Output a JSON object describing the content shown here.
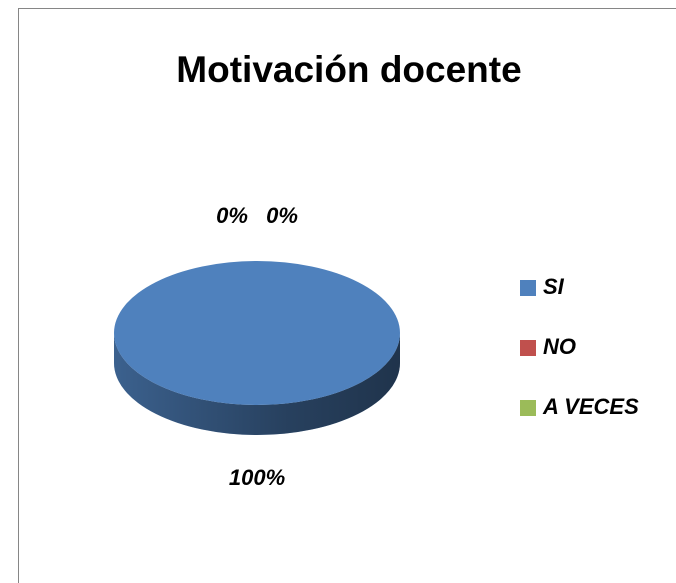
{
  "chart_data": {
    "type": "pie",
    "title": "Motivación docente",
    "categories": [
      "SI",
      "NO",
      "A VECES"
    ],
    "values": [
      100,
      0,
      0
    ],
    "value_labels": [
      "100%",
      "0%",
      "0%"
    ],
    "colors": [
      "#4f81bd",
      "#c0504d",
      "#9bbb59"
    ],
    "legend": "right"
  }
}
